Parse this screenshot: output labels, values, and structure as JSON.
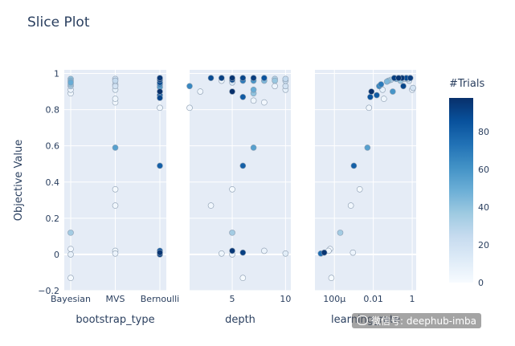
{
  "page": {
    "title": "Slice Plot",
    "watermark": "微信号: deephub-imba"
  },
  "colors": {
    "plot_bg": "#e5ecf6",
    "grid": "#ffffff",
    "text": "#2a3f5f",
    "marker_edge": "#8a9cb0"
  },
  "colorscale": [
    "#f7fbff",
    "#deebf7",
    "#c6dbef",
    "#9ecae1",
    "#6baed6",
    "#4292c6",
    "#2171b5",
    "#08519c",
    "#08306b"
  ],
  "chart_data": {
    "type": "scatter",
    "title": "Slice Plot",
    "ylabel": "Objective Value",
    "ylim": [
      -0.2,
      1.02
    ],
    "yticks": [
      -0.2,
      0,
      0.2,
      0.4,
      0.6,
      0.8,
      1
    ],
    "ytick_labels": [
      "−0.2",
      "0",
      "0.2",
      "0.4",
      "0.6",
      "0.8",
      "1"
    ],
    "grid": true,
    "colorbar": {
      "title": "#Trials",
      "range": [
        0,
        98
      ],
      "ticks": [
        0,
        20,
        40,
        60,
        80
      ]
    },
    "panels": [
      {
        "xlabel": "bootstrap_type",
        "x_type": "category",
        "categories": [
          "Bayesian",
          "MVS",
          "Bernoulli"
        ],
        "points": [
          {
            "x": "Bayesian",
            "y": 0.97,
            "trial": 40
          },
          {
            "x": "Bayesian",
            "y": 0.96,
            "trial": 45
          },
          {
            "x": "Bayesian",
            "y": 0.95,
            "trial": 50
          },
          {
            "x": "Bayesian",
            "y": 0.94,
            "trial": 38
          },
          {
            "x": "Bayesian",
            "y": 0.93,
            "trial": 30
          },
          {
            "x": "Bayesian",
            "y": 0.91,
            "trial": 5
          },
          {
            "x": "Bayesian",
            "y": 0.89,
            "trial": 3
          },
          {
            "x": "Bayesian",
            "y": 0.12,
            "trial": 35
          },
          {
            "x": "Bayesian",
            "y": 0.03,
            "trial": 2
          },
          {
            "x": "Bayesian",
            "y": 0.0,
            "trial": 6
          },
          {
            "x": "Bayesian",
            "y": -0.13,
            "trial": 1
          },
          {
            "x": "MVS",
            "y": 0.97,
            "trial": 20
          },
          {
            "x": "MVS",
            "y": 0.96,
            "trial": 25
          },
          {
            "x": "MVS",
            "y": 0.94,
            "trial": 15
          },
          {
            "x": "MVS",
            "y": 0.93,
            "trial": 18
          },
          {
            "x": "MVS",
            "y": 0.91,
            "trial": 8
          },
          {
            "x": "MVS",
            "y": 0.86,
            "trial": 4
          },
          {
            "x": "MVS",
            "y": 0.84,
            "trial": 2
          },
          {
            "x": "MVS",
            "y": 0.59,
            "trial": 55
          },
          {
            "x": "MVS",
            "y": 0.36,
            "trial": 1
          },
          {
            "x": "MVS",
            "y": 0.27,
            "trial": 3
          },
          {
            "x": "MVS",
            "y": 0.02,
            "trial": 4
          },
          {
            "x": "MVS",
            "y": 0.005,
            "trial": 5
          },
          {
            "x": "Bernoulli",
            "y": 0.975,
            "trial": 95
          },
          {
            "x": "Bernoulli",
            "y": 0.965,
            "trial": 92
          },
          {
            "x": "Bernoulli",
            "y": 0.95,
            "trial": 88
          },
          {
            "x": "Bernoulli",
            "y": 0.94,
            "trial": 70
          },
          {
            "x": "Bernoulli",
            "y": 0.925,
            "trial": 60
          },
          {
            "x": "Bernoulli",
            "y": 0.9,
            "trial": 98
          },
          {
            "x": "Bernoulli",
            "y": 0.88,
            "trial": 82
          },
          {
            "x": "Bernoulli",
            "y": 0.865,
            "trial": 90
          },
          {
            "x": "Bernoulli",
            "y": 0.81,
            "trial": 3
          },
          {
            "x": "Bernoulli",
            "y": 0.49,
            "trial": 80
          },
          {
            "x": "Bernoulli",
            "y": 0.02,
            "trial": 85
          },
          {
            "x": "Bernoulli",
            "y": 0.01,
            "trial": 96
          },
          {
            "x": "Bernoulli",
            "y": 0.0,
            "trial": 92
          }
        ]
      },
      {
        "xlabel": "depth",
        "x_type": "linear",
        "xlim": [
          1,
          10.5
        ],
        "xticks": [
          5,
          10
        ],
        "xtick_labels": [
          "5",
          "10"
        ],
        "points": [
          {
            "x": 1,
            "y": 0.93,
            "trial": 65
          },
          {
            "x": 1,
            "y": 0.81,
            "trial": 2
          },
          {
            "x": 2,
            "y": 0.9,
            "trial": 3
          },
          {
            "x": 3,
            "y": 0.27,
            "trial": 3
          },
          {
            "x": 3,
            "y": 0.975,
            "trial": 88
          },
          {
            "x": 4,
            "y": 0.975,
            "trial": 92
          },
          {
            "x": 4,
            "y": 0.96,
            "trial": 3
          },
          {
            "x": 4,
            "y": 0.005,
            "trial": 4
          },
          {
            "x": 5,
            "y": 0.975,
            "trial": 96
          },
          {
            "x": 5,
            "y": 0.965,
            "trial": 90
          },
          {
            "x": 5,
            "y": 0.95,
            "trial": 15
          },
          {
            "x": 5,
            "y": 0.9,
            "trial": 98
          },
          {
            "x": 5,
            "y": 0.36,
            "trial": 1
          },
          {
            "x": 5,
            "y": 0.12,
            "trial": 35
          },
          {
            "x": 5,
            "y": 0.02,
            "trial": 95
          },
          {
            "x": 5,
            "y": 0.0,
            "trial": 5
          },
          {
            "x": 6,
            "y": 0.975,
            "trial": 90
          },
          {
            "x": 6,
            "y": 0.96,
            "trial": 70
          },
          {
            "x": 6,
            "y": 0.87,
            "trial": 82
          },
          {
            "x": 6,
            "y": 0.49,
            "trial": 80
          },
          {
            "x": 6,
            "y": 0.01,
            "trial": 92
          },
          {
            "x": 6,
            "y": -0.13,
            "trial": 1
          },
          {
            "x": 7,
            "y": 0.975,
            "trial": 93
          },
          {
            "x": 7,
            "y": 0.96,
            "trial": 60
          },
          {
            "x": 7,
            "y": 0.91,
            "trial": 50
          },
          {
            "x": 7,
            "y": 0.89,
            "trial": 40
          },
          {
            "x": 7,
            "y": 0.85,
            "trial": 4
          },
          {
            "x": 7,
            "y": 0.59,
            "trial": 55
          },
          {
            "x": 8,
            "y": 0.975,
            "trial": 85
          },
          {
            "x": 8,
            "y": 0.96,
            "trial": 45
          },
          {
            "x": 8,
            "y": 0.84,
            "trial": 2
          },
          {
            "x": 8,
            "y": 0.02,
            "trial": 6
          },
          {
            "x": 9,
            "y": 0.97,
            "trial": 30
          },
          {
            "x": 9,
            "y": 0.96,
            "trial": 38
          },
          {
            "x": 9,
            "y": 0.93,
            "trial": 5
          },
          {
            "x": 10,
            "y": 0.97,
            "trial": 25
          },
          {
            "x": 10,
            "y": 0.96,
            "trial": 20
          },
          {
            "x": 10,
            "y": 0.93,
            "trial": 18
          },
          {
            "x": 10,
            "y": 0.91,
            "trial": 8
          },
          {
            "x": 10,
            "y": 0.005,
            "trial": 10
          }
        ]
      },
      {
        "xlabel": "learning_rate",
        "x_type": "log",
        "xlim": [
          1e-05,
          1.6
        ],
        "xticks": [
          0.0001,
          0.01,
          1
        ],
        "xtick_labels": [
          "100μ",
          "0.01",
          "1"
        ],
        "points": [
          {
            "x": 2e-05,
            "y": 0.005,
            "trial": 75
          },
          {
            "x": 3e-05,
            "y": 0.01,
            "trial": 96
          },
          {
            "x": 5e-05,
            "y": 0.02,
            "trial": 3
          },
          {
            "x": 6e-05,
            "y": 0.03,
            "trial": 2
          },
          {
            "x": 7e-05,
            "y": -0.13,
            "trial": 1
          },
          {
            "x": 0.0002,
            "y": 0.12,
            "trial": 35
          },
          {
            "x": 0.0007,
            "y": 0.27,
            "trial": 3
          },
          {
            "x": 0.0009,
            "y": 0.01,
            "trial": 5
          },
          {
            "x": 0.001,
            "y": 0.49,
            "trial": 80
          },
          {
            "x": 0.002,
            "y": 0.36,
            "trial": 1
          },
          {
            "x": 0.005,
            "y": 0.59,
            "trial": 55
          },
          {
            "x": 0.006,
            "y": 0.81,
            "trial": 3
          },
          {
            "x": 0.007,
            "y": 0.87,
            "trial": 85
          },
          {
            "x": 0.008,
            "y": 0.9,
            "trial": 98
          },
          {
            "x": 0.015,
            "y": 0.88,
            "trial": 82
          },
          {
            "x": 0.02,
            "y": 0.93,
            "trial": 65
          },
          {
            "x": 0.025,
            "y": 0.94,
            "trial": 70
          },
          {
            "x": 0.03,
            "y": 0.91,
            "trial": 8
          },
          {
            "x": 0.035,
            "y": 0.86,
            "trial": 4
          },
          {
            "x": 0.05,
            "y": 0.955,
            "trial": 45
          },
          {
            "x": 0.06,
            "y": 0.96,
            "trial": 40
          },
          {
            "x": 0.08,
            "y": 0.965,
            "trial": 30
          },
          {
            "x": 0.1,
            "y": 0.9,
            "trial": 60
          },
          {
            "x": 0.12,
            "y": 0.975,
            "trial": 92
          },
          {
            "x": 0.15,
            "y": 0.97,
            "trial": 50
          },
          {
            "x": 0.2,
            "y": 0.975,
            "trial": 96
          },
          {
            "x": 0.25,
            "y": 0.96,
            "trial": 38
          },
          {
            "x": 0.3,
            "y": 0.975,
            "trial": 95
          },
          {
            "x": 0.35,
            "y": 0.93,
            "trial": 90
          },
          {
            "x": 0.4,
            "y": 0.97,
            "trial": 25
          },
          {
            "x": 0.5,
            "y": 0.975,
            "trial": 88
          },
          {
            "x": 0.6,
            "y": 0.97,
            "trial": 20
          },
          {
            "x": 0.7,
            "y": 0.96,
            "trial": 15
          },
          {
            "x": 0.8,
            "y": 0.975,
            "trial": 93
          },
          {
            "x": 1.0,
            "y": 0.91,
            "trial": 5
          },
          {
            "x": 1.1,
            "y": 0.92,
            "trial": 18
          }
        ]
      }
    ]
  }
}
